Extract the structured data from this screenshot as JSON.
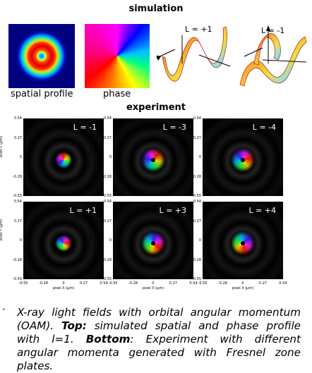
{
  "headings": {
    "simulation": "simulation",
    "experiment": "experiment"
  },
  "captions": {
    "spatial": "spatial profile",
    "phase": "phase"
  },
  "helix": {
    "left": "L = +1",
    "right": "L = -1"
  },
  "panels": {
    "top": [
      "L = -1",
      "L = -3",
      "L = -4"
    ],
    "bottom": [
      "L = +1",
      "L = +3",
      "L = +4"
    ]
  },
  "axes": {
    "ylabel": "pixel Y (µm)",
    "xlabel": "pixel X (µm)",
    "ticks": [
      "0.54",
      "0.27",
      "0",
      "-0.28",
      "-0.55"
    ],
    "xticks": [
      "-0.55",
      "-0.28",
      "0",
      "0.27",
      "0.54"
    ]
  },
  "bullet": {
    "dot": "·",
    "p1": "X-ray light fields with orbital angular momentum (OAM). ",
    "top_label": "Top:",
    "p2": " simulated spatial and phase profile with l=1. ",
    "bottom_label": "Bottom",
    "p3": ": Experiment with different angular momenta generated with Fresnel zone plates."
  }
}
